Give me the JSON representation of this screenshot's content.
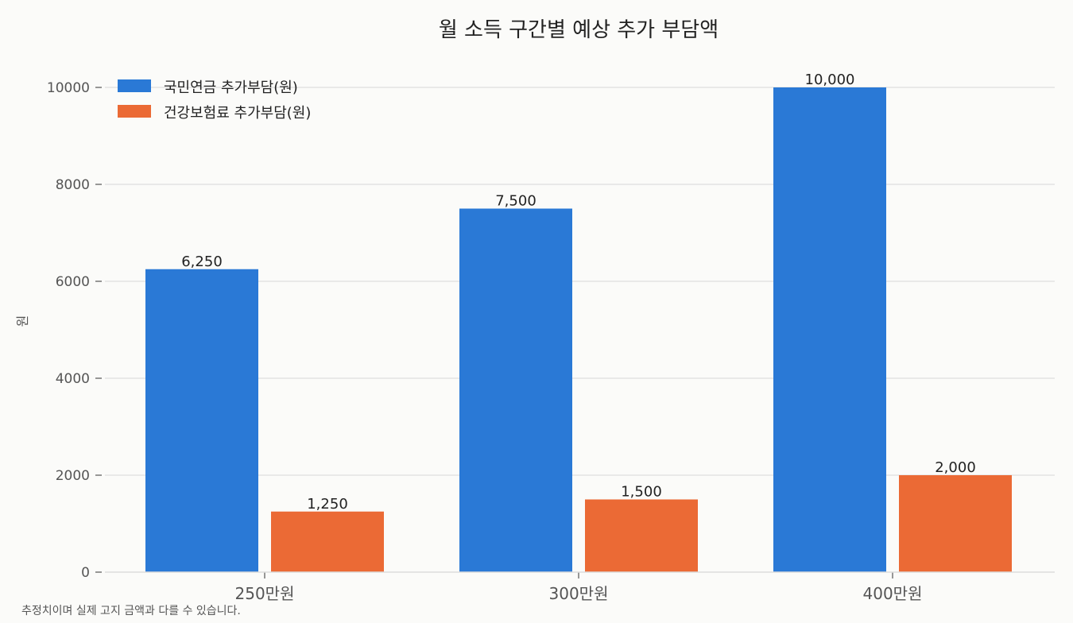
{
  "chart_data": {
    "type": "bar",
    "title": "월 소득 구간별 예상 추가 부담액",
    "xlabel": "",
    "ylabel": "원",
    "categories": [
      "250만원",
      "300만원",
      "400만원"
    ],
    "series": [
      {
        "name": "국민연금 추가부담(원)",
        "values": [
          6250,
          7500,
          10000
        ],
        "color": "#2a79d6",
        "labels": [
          "6,250",
          "7,500",
          "10,000"
        ]
      },
      {
        "name": "건강보험료 추가부담(원)",
        "values": [
          1250,
          1500,
          2000
        ],
        "color": "#eb6a35",
        "labels": [
          "1,250",
          "1,500",
          "2,000"
        ]
      }
    ],
    "ylim": [
      0,
      10000
    ],
    "yticks": [
      0,
      2000,
      4000,
      6000,
      8000,
      10000
    ],
    "ytick_labels": [
      "0",
      "2000",
      "4000",
      "6000",
      "8000",
      "10000"
    ],
    "grid": true,
    "legend_position": "top-left",
    "footnote": "추정치이며 실제 고지 금액과 다를 수 있습니다."
  }
}
